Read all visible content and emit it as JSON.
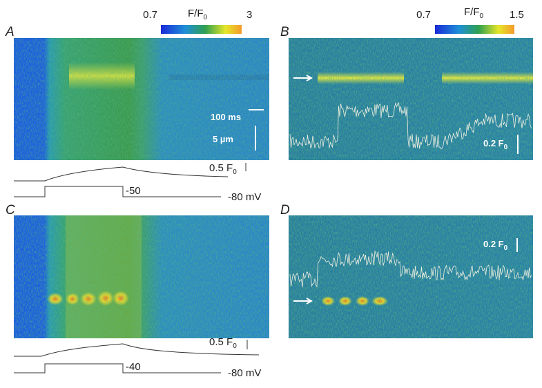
{
  "panels": [
    {
      "label": "A",
      "colorbar": {
        "title": "F/F",
        "title_sub": "0",
        "min_label": "0.7",
        "max_label": "3"
      },
      "time_scale": "100 ms",
      "space_scale": "5 µm",
      "trace_scale": "0.5 F",
      "trace_scale_sub": "0",
      "step_voltage": "-50",
      "holding_voltage": "-80 mV"
    },
    {
      "label": "B",
      "colorbar": {
        "title": "F/F",
        "title_sub": "0",
        "min_label": "0.7",
        "max_label": "1.5"
      },
      "trace_scale": "0.2 F",
      "trace_scale_sub": "0"
    },
    {
      "label": "C",
      "trace_scale": "0.5 F",
      "trace_scale_sub": "0",
      "step_voltage": "-40",
      "holding_voltage": "-80 mV"
    },
    {
      "label": "D",
      "trace_scale": "0.2 F",
      "trace_scale_sub": "0"
    }
  ]
}
